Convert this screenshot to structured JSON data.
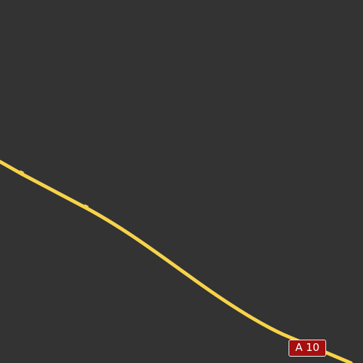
{
  "map": {
    "background_color": "#333333",
    "road": {
      "kind": "motorway",
      "color": "#f7d34a",
      "ref": "A 10"
    },
    "shield": {
      "label": "A 10",
      "fill_color": "#a50f0f",
      "text_color": "#ffffff",
      "border_color": "#f2f2f2"
    }
  }
}
